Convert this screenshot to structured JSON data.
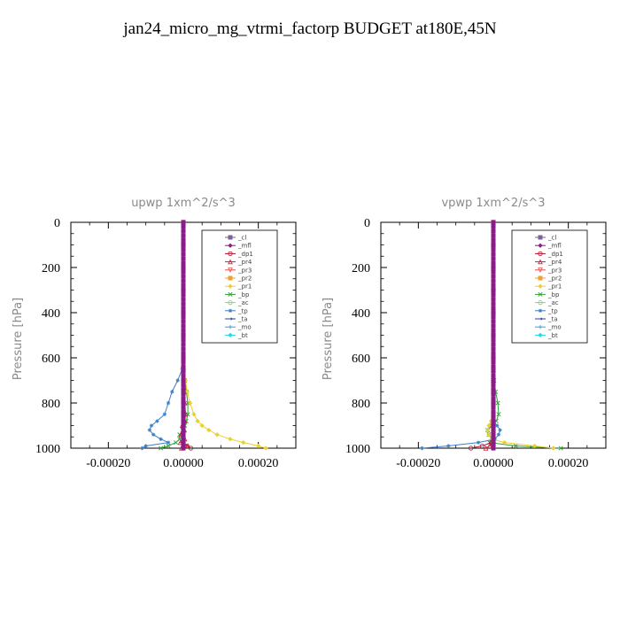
{
  "page": {
    "title": "jan24_micro_mg_vtrmi_factorp  BUDGET at180E,45N"
  },
  "chart_data": [
    {
      "type": "line",
      "title": "upwp   1xm^2/s^3",
      "ylabel": "Pressure  [hPa]",
      "xlabel": "",
      "xlim": [
        -0.0003,
        0.0003
      ],
      "ylim": [
        1000,
        0
      ],
      "y_ticks": [
        0,
        200,
        400,
        600,
        800,
        1000
      ],
      "y_tick_labels": [
        "0",
        "200",
        "400",
        "600",
        "800",
        "1000"
      ],
      "x_ticks": [
        -0.0002,
        0.0,
        0.0002
      ],
      "x_tick_labels": [
        "-0.00020",
        "0.00000",
        "0.00020"
      ],
      "legend_position": "top-right",
      "y": [
        0,
        100,
        200,
        300,
        400,
        500,
        600,
        650,
        700,
        750,
        800,
        850,
        880,
        900,
        920,
        940,
        960,
        975,
        990,
        1000
      ],
      "series": [
        {
          "name": "_cl",
          "color": "#7f5f9f",
          "values": [
            0,
            0,
            0,
            0,
            0,
            0,
            0,
            0,
            0,
            0,
            0,
            0,
            0,
            0,
            0,
            0,
            0,
            0,
            0,
            0
          ]
        },
        {
          "name": "_mfl",
          "color": "#8b1a8b",
          "values": [
            0,
            0,
            0,
            0,
            0,
            0,
            0,
            0,
            0,
            0,
            0,
            0,
            0,
            0,
            0,
            0,
            0,
            0,
            0,
            0
          ]
        },
        {
          "name": "_dp1",
          "color": "#b0102a",
          "values": [
            0,
            0,
            0,
            0,
            0,
            0,
            0,
            0,
            0,
            0,
            0,
            0,
            0,
            0,
            0,
            0,
            0,
            0,
            1e-05,
            2e-05
          ]
        },
        {
          "name": "_pr4",
          "color": "#d81b3c",
          "values": [
            0,
            0,
            0,
            0,
            0,
            0,
            0,
            0,
            0,
            2e-06,
            4e-06,
            6e-06,
            4e-06,
            -3e-06,
            3e-06,
            -6e-06,
            4e-06,
            -8e-06,
            1.2e-05,
            -5e-06
          ]
        },
        {
          "name": "_pr3",
          "color": "#e8504a",
          "values": [
            0,
            0,
            0,
            0,
            0,
            0,
            0,
            0,
            0,
            0,
            0,
            0,
            0,
            0,
            0,
            0,
            0,
            0,
            0,
            0
          ]
        },
        {
          "name": "_pr2",
          "color": "#f0a030",
          "values": [
            0,
            0,
            0,
            0,
            0,
            0,
            0,
            0,
            0,
            0,
            0,
            0,
            0,
            0,
            0,
            0,
            0,
            0,
            0,
            0
          ]
        },
        {
          "name": "_pr1",
          "color": "#e8d030",
          "values": [
            0,
            0,
            0,
            0,
            0,
            0,
            0,
            2e-06,
            6e-06,
            1e-05,
            1.8e-05,
            2.8e-05,
            3.8e-05,
            5e-05,
            6.8e-05,
            9e-05,
            0.000125,
            0.00016,
            0.0002,
            0.00022
          ]
        },
        {
          "name": "_bp",
          "color": "#2ca02c",
          "values": [
            0,
            0,
            0,
            0,
            0,
            0,
            0,
            0,
            4e-06,
            8e-06,
            1.2e-05,
            1.2e-05,
            8e-06,
            4e-06,
            -2e-06,
            -1e-05,
            -1e-05,
            -2e-05,
            -4e-05,
            -6e-05
          ]
        },
        {
          "name": "_ac",
          "color": "#7fd67f",
          "values": [
            0,
            0,
            0,
            0,
            0,
            0,
            0,
            0,
            0,
            0,
            0,
            0,
            0,
            0,
            0,
            0,
            0,
            0,
            0,
            0
          ]
        },
        {
          "name": "_tp",
          "color": "#3a7fc8",
          "values": [
            0,
            0,
            0,
            0,
            0,
            0,
            0,
            -3e-06,
            -1.5e-05,
            -3e-05,
            -4e-05,
            -5e-05,
            -7e-05,
            -8.5e-05,
            -9e-05,
            -8e-05,
            -6e-05,
            -4e-05,
            -0.0001,
            -0.00011
          ]
        },
        {
          "name": "_ta",
          "color": "#1f3fb0",
          "values": [
            0,
            0,
            0,
            0,
            0,
            0,
            0,
            0,
            0,
            0,
            0,
            0,
            0,
            0,
            0,
            0,
            0,
            0,
            0,
            0
          ]
        },
        {
          "name": "_mo",
          "color": "#3fa0d8",
          "values": [
            0,
            0,
            0,
            0,
            0,
            0,
            0,
            0,
            0,
            0,
            0,
            0,
            0,
            0,
            0,
            0,
            0,
            0,
            0,
            0
          ]
        },
        {
          "name": "_bt",
          "color": "#20d8e0",
          "values": [
            0,
            0,
            0,
            0,
            0,
            0,
            0,
            0,
            0,
            0,
            0,
            0,
            0,
            0,
            0,
            0,
            0,
            0,
            0,
            0
          ]
        }
      ]
    },
    {
      "type": "line",
      "title": "vpwp   1xm^2/s^3",
      "ylabel": "Pressure  [hPa]",
      "xlabel": "",
      "xlim": [
        -0.0003,
        0.0003
      ],
      "ylim": [
        1000,
        0
      ],
      "y_ticks": [
        0,
        200,
        400,
        600,
        800,
        1000
      ],
      "y_tick_labels": [
        "0",
        "200",
        "400",
        "600",
        "800",
        "1000"
      ],
      "x_ticks": [
        -0.0002,
        0.0,
        0.0002
      ],
      "x_tick_labels": [
        "-0.00020",
        "0.00000",
        "0.00020"
      ],
      "legend_position": "top-right",
      "y": [
        0,
        100,
        200,
        300,
        400,
        500,
        600,
        650,
        700,
        750,
        800,
        850,
        880,
        900,
        920,
        940,
        960,
        975,
        990,
        1000
      ],
      "series": [
        {
          "name": "_cl",
          "color": "#7f5f9f",
          "values": [
            0,
            0,
            0,
            0,
            0,
            0,
            0,
            0,
            0,
            0,
            0,
            0,
            0,
            0,
            0,
            0,
            0,
            0,
            0,
            0
          ]
        },
        {
          "name": "_mfl",
          "color": "#8b1a8b",
          "values": [
            0,
            0,
            0,
            0,
            0,
            0,
            0,
            0,
            0,
            0,
            0,
            0,
            0,
            0,
            0,
            0,
            0,
            0,
            0,
            0
          ]
        },
        {
          "name": "_dp1",
          "color": "#b0102a",
          "values": [
            0,
            0,
            0,
            0,
            0,
            0,
            0,
            0,
            0,
            0,
            0,
            0,
            0,
            0,
            0,
            0,
            0,
            -5e-06,
            -3e-05,
            -6e-05
          ]
        },
        {
          "name": "_pr4",
          "color": "#d81b3c",
          "values": [
            0,
            0,
            0,
            0,
            0,
            0,
            0,
            0,
            0,
            0,
            0,
            0,
            0,
            0,
            0,
            0,
            0,
            0,
            -1e-05,
            -2e-05
          ]
        },
        {
          "name": "_pr3",
          "color": "#e8504a",
          "values": [
            0,
            0,
            0,
            0,
            0,
            0,
            0,
            0,
            0,
            0,
            0,
            0,
            0,
            0,
            0,
            0,
            0,
            0,
            0,
            0
          ]
        },
        {
          "name": "_pr2",
          "color": "#f0a030",
          "values": [
            0,
            0,
            0,
            0,
            0,
            0,
            0,
            0,
            0,
            0,
            0,
            0,
            0,
            0,
            0,
            0,
            0,
            0,
            0,
            0
          ]
        },
        {
          "name": "_pr1",
          "color": "#e8d030",
          "values": [
            0,
            0,
            0,
            0,
            0,
            0,
            0,
            0,
            0,
            0,
            0,
            0,
            -6e-06,
            -1.2e-05,
            -1.5e-05,
            -1.2e-05,
            -4e-06,
            3e-05,
            0.00011,
            0.00016
          ]
        },
        {
          "name": "_bp",
          "color": "#2ca02c",
          "values": [
            0,
            0,
            0,
            0,
            0,
            0,
            0,
            0,
            2e-06,
            6e-06,
            1.2e-05,
            1.4e-05,
            8e-06,
            -4e-06,
            -1.5e-05,
            -1.2e-05,
            -4e-06,
            -1e-05,
            6e-05,
            0.00018
          ]
        },
        {
          "name": "_ac",
          "color": "#7fd67f",
          "values": [
            0,
            0,
            0,
            0,
            0,
            0,
            0,
            0,
            0,
            0,
            0,
            0,
            0,
            0,
            0,
            0,
            0,
            0,
            0,
            0
          ]
        },
        {
          "name": "_tp",
          "color": "#3a7fc8",
          "values": [
            0,
            0,
            0,
            0,
            0,
            0,
            0,
            0,
            0,
            0,
            0,
            0,
            0,
            1e-05,
            1.8e-05,
            1.4e-05,
            4e-06,
            -4e-05,
            -0.00012,
            -0.00019
          ]
        },
        {
          "name": "_ta",
          "color": "#1f3fb0",
          "values": [
            0,
            0,
            0,
            0,
            0,
            0,
            0,
            0,
            0,
            0,
            0,
            0,
            0,
            0,
            0,
            0,
            0,
            0,
            0,
            0
          ]
        },
        {
          "name": "_mo",
          "color": "#3fa0d8",
          "values": [
            0,
            0,
            0,
            0,
            0,
            0,
            0,
            0,
            0,
            0,
            0,
            0,
            0,
            0,
            0,
            0,
            0,
            0,
            0,
            0
          ]
        },
        {
          "name": "_bt",
          "color": "#20d8e0",
          "values": [
            0,
            0,
            0,
            0,
            0,
            0,
            0,
            0,
            0,
            0,
            0,
            0,
            0,
            0,
            0,
            0,
            0,
            0,
            0,
            0
          ]
        }
      ]
    }
  ]
}
